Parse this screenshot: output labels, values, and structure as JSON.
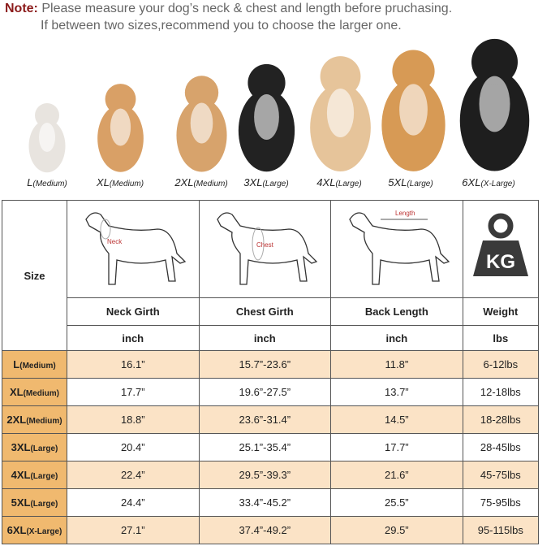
{
  "note": {
    "label": "Note:",
    "line1": "Please measure your dog’s neck & chest and length before pruchasing.",
    "line2": "If between two sizes,recommend you to choose the larger one."
  },
  "dogs": [
    {
      "size": "L",
      "fit": "(Medium)",
      "color": "#e8e4df",
      "h": 90
    },
    {
      "size": "XL",
      "fit": "(Medium)",
      "color": "#d9a066",
      "h": 115
    },
    {
      "size": "2XL",
      "fit": "(Medium)",
      "color": "#d7a36c",
      "h": 125
    },
    {
      "size": "3XL",
      "fit": "(Large)",
      "color": "#222222",
      "h": 140
    },
    {
      "size": "4XL",
      "fit": "(Large)",
      "color": "#e6c49a",
      "h": 150
    },
    {
      "size": "5XL",
      "fit": "(Large)",
      "color": "#d79a55",
      "h": 158
    },
    {
      "size": "6XL",
      "fit": "(X-Large)",
      "color": "#1e1e1e",
      "h": 172
    }
  ],
  "table": {
    "size_header": "Size",
    "diagram_labels": {
      "neck": "Neck",
      "chest": "Chest",
      "length": "Length",
      "weight_icon": "KG"
    },
    "columns": [
      "Neck Girth",
      "Chest Girth",
      "Back Length",
      "Weight"
    ],
    "units": [
      "inch",
      "inch",
      "inch",
      "lbs"
    ],
    "rows": [
      {
        "size": "L",
        "fit": "(Medium)",
        "values": [
          "16.1”",
          "15.7”-23.6”",
          "11.8”",
          "6-12lbs"
        ]
      },
      {
        "size": "XL",
        "fit": "(Medium)",
        "values": [
          "17.7”",
          "19.6”-27.5”",
          "13.7”",
          "12-18lbs"
        ]
      },
      {
        "size": "2XL",
        "fit": "(Medium)",
        "values": [
          "18.8”",
          "23.6”-31.4”",
          "14.5”",
          "18-28lbs"
        ]
      },
      {
        "size": "3XL",
        "fit": "(Large)",
        "values": [
          "20.4”",
          "25.1”-35.4”",
          "17.7”",
          "28-45lbs"
        ]
      },
      {
        "size": "4XL",
        "fit": "(Large)",
        "values": [
          "22.4”",
          "29.5”-39.3”",
          "21.6”",
          "45-75lbs"
        ]
      },
      {
        "size": "5XL",
        "fit": "(Large)",
        "values": [
          "24.4”",
          "33.4”-45.2”",
          "25.5”",
          "75-95lbs"
        ]
      },
      {
        "size": "6XL",
        "fit": "(X-Large)",
        "values": [
          "27.1”",
          "37.4”-49.2”",
          "29.5”",
          "95-115lbs"
        ]
      }
    ]
  },
  "colors": {
    "size_column": "#f0b96f",
    "row_highlight": "#fbe3c6",
    "note_label": "#8b1a1a"
  }
}
